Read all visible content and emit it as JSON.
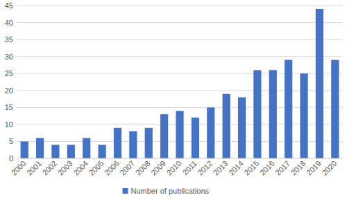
{
  "chart_data": {
    "type": "bar",
    "categories": [
      "2000",
      "2001",
      "2002",
      "2003",
      "2004",
      "2005",
      "2006",
      "2007",
      "2008",
      "2009",
      "2010",
      "2011",
      "2012",
      "2013",
      "2014",
      "2015",
      "2016",
      "2017",
      "2018",
      "2019",
      "2020"
    ],
    "series": [
      {
        "name": "Number of publications",
        "color": "#4472c4",
        "values": [
          5,
          6,
          4,
          4,
          6,
          4,
          9,
          8,
          9,
          13,
          14,
          12,
          15,
          19,
          18,
          26,
          26,
          29,
          25,
          44,
          29
        ]
      }
    ],
    "ylim": [
      0,
      45
    ],
    "yticks": [
      0,
      5,
      10,
      15,
      20,
      25,
      30,
      35,
      40,
      45
    ],
    "grid": true,
    "legend": "bottom"
  }
}
